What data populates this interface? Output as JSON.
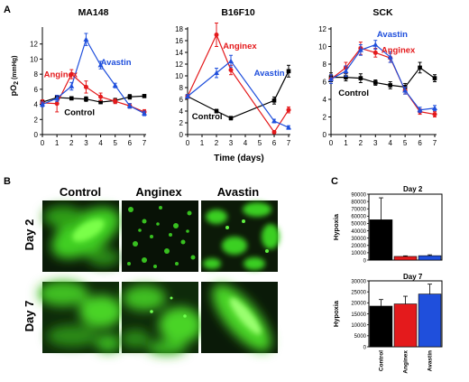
{
  "panel_labels": {
    "a": "A",
    "b": "B",
    "c": "C"
  },
  "colors": {
    "control": "#000000",
    "anginex": "#e41a1c",
    "avastin": "#1f4fdc",
    "micrograph_green": "#39d400"
  },
  "panel_a": {
    "y_label_main": "pO",
    "y_label_sub": "2",
    "y_label_unit": " (mmHg)",
    "x_label": "Time (days)"
  },
  "panel_b": {
    "columns": [
      "Control",
      "Anginex",
      "Avastin"
    ],
    "rows": [
      "Day 2",
      "Day 7"
    ]
  },
  "chart_data": [
    {
      "type": "line",
      "title": "MA148",
      "xlabel": "Time (days)",
      "ylabel": "pO2 (mmHg)",
      "xlim": [
        0,
        7
      ],
      "ylim": [
        0,
        14
      ],
      "x_ticks": [
        "0",
        "1",
        "2",
        "3",
        "4",
        "5",
        "6",
        "7"
      ],
      "y_ticks": [
        "0",
        "2",
        "4",
        "6",
        "8",
        "10",
        "12"
      ],
      "series": [
        {
          "name": "Control",
          "color": "#000000",
          "x": [
            0,
            1,
            2,
            3,
            4,
            5,
            6,
            7
          ],
          "y": [
            4.3,
            4.9,
            4.8,
            4.7,
            4.3,
            4.5,
            5.0,
            5.1
          ],
          "err": [
            0.2,
            0.3,
            0.2,
            0.3,
            0.2,
            0.3,
            0.3,
            0.2
          ]
        },
        {
          "name": "Anginex",
          "color": "#e41a1c",
          "x": [
            0,
            1,
            2,
            3,
            4,
            5,
            6,
            7
          ],
          "y": [
            4.2,
            4.1,
            8.0,
            6.3,
            5.0,
            4.4,
            3.8,
            3.0
          ],
          "err": [
            0.4,
            1.1,
            0.6,
            0.8,
            0.5,
            0.3,
            0.3,
            0.3
          ]
        },
        {
          "name": "Avastin",
          "color": "#1f4fdc",
          "x": [
            0,
            1,
            2,
            3,
            4,
            5,
            6,
            7
          ],
          "y": [
            4.0,
            4.8,
            6.4,
            12.6,
            9.2,
            6.5,
            3.8,
            2.8
          ],
          "err": [
            0.3,
            0.4,
            0.5,
            0.8,
            0.5,
            0.3,
            0.3,
            0.3
          ]
        }
      ],
      "annotations": [
        {
          "text": "Anginex",
          "series": "Anginex"
        },
        {
          "text": "Avastin",
          "series": "Avastin"
        },
        {
          "text": "Control",
          "series": "Control"
        }
      ]
    },
    {
      "type": "line",
      "title": "B16F10",
      "xlabel": "Time (days)",
      "xlim": [
        0,
        7
      ],
      "ylim": [
        0,
        18
      ],
      "x_ticks": [
        "0",
        "1",
        "2",
        "3",
        "4",
        "5",
        "6",
        "7"
      ],
      "y_ticks": [
        "0",
        "2",
        "4",
        "6",
        "8",
        "10",
        "12",
        "14",
        "16",
        "18"
      ],
      "series": [
        {
          "name": "Control",
          "color": "#000000",
          "x": [
            0,
            2,
            3,
            6,
            7
          ],
          "y": [
            6.5,
            4.0,
            2.8,
            5.8,
            10.8
          ],
          "err": [
            0.3,
            0.3,
            0.3,
            0.6,
            1.0
          ]
        },
        {
          "name": "Anginex",
          "color": "#e41a1c",
          "x": [
            0,
            2,
            3,
            6,
            7
          ],
          "y": [
            6.5,
            17.0,
            11.0,
            0.4,
            4.2
          ],
          "err": [
            0.3,
            2.0,
            0.8,
            0.2,
            0.5
          ]
        },
        {
          "name": "Avastin",
          "color": "#1f4fdc",
          "x": [
            0,
            2,
            3,
            6,
            7
          ],
          "y": [
            6.5,
            10.5,
            12.5,
            2.3,
            1.2
          ],
          "err": [
            0.3,
            0.8,
            1.0,
            0.3,
            0.3
          ]
        }
      ],
      "annotations": [
        {
          "text": "Anginex",
          "series": "Anginex"
        },
        {
          "text": "Avastin",
          "series": "Avastin"
        },
        {
          "text": "Control",
          "series": "Control"
        }
      ]
    },
    {
      "type": "line",
      "title": "SCK",
      "xlabel": "Time (days)",
      "xlim": [
        0,
        7
      ],
      "ylim": [
        0,
        12
      ],
      "x_ticks": [
        "0",
        "1",
        "2",
        "3",
        "4",
        "5",
        "6",
        "7"
      ],
      "y_ticks": [
        "0",
        "2",
        "4",
        "6",
        "8",
        "10",
        "12"
      ],
      "series": [
        {
          "name": "Control",
          "color": "#000000",
          "x": [
            0,
            1,
            2,
            3,
            4,
            5,
            6,
            7
          ],
          "y": [
            6.5,
            6.5,
            6.4,
            5.9,
            5.6,
            5.4,
            7.6,
            6.4
          ],
          "err": [
            0.5,
            0.4,
            0.5,
            0.3,
            0.4,
            0.4,
            0.6,
            0.4
          ]
        },
        {
          "name": "Anginex",
          "color": "#e41a1c",
          "x": [
            0,
            1,
            2,
            3,
            4,
            5,
            6,
            7
          ],
          "y": [
            6.3,
            7.6,
            9.8,
            9.3,
            8.7,
            5.0,
            2.6,
            2.3
          ],
          "err": [
            0.5,
            0.6,
            0.7,
            0.5,
            0.5,
            0.4,
            0.3,
            0.3
          ]
        },
        {
          "name": "Avastin",
          "color": "#1f4fdc",
          "x": [
            0,
            1,
            2,
            3,
            4,
            5,
            6,
            7
          ],
          "y": [
            6.3,
            7.2,
            9.6,
            10.2,
            8.8,
            5.0,
            2.8,
            3.0
          ],
          "err": [
            0.5,
            0.6,
            0.6,
            0.5,
            0.6,
            0.4,
            0.3,
            0.3
          ]
        }
      ],
      "annotations": [
        {
          "text": "Avastin",
          "series": "Avastin"
        },
        {
          "text": "Anginex",
          "series": "Anginex"
        },
        {
          "text": "Control",
          "series": "Control"
        }
      ]
    },
    {
      "type": "bar",
      "title": "Day 2",
      "ylabel": "Hypoxia",
      "categories": [
        "Control",
        "Anginex",
        "Avastin"
      ],
      "values": [
        55000,
        5000,
        6000
      ],
      "errors": [
        30000,
        800,
        1200
      ],
      "colors": [
        "#000000",
        "#e41a1c",
        "#1f4fdc"
      ],
      "ylim": [
        0,
        90000
      ],
      "y_ticks": [
        "0",
        "10000",
        "20000",
        "30000",
        "40000",
        "50000",
        "60000",
        "70000",
        "80000",
        "90000"
      ]
    },
    {
      "type": "bar",
      "title": "Day 7",
      "ylabel": "Hypoxia",
      "categories": [
        "Control",
        "Anginex",
        "Avastin"
      ],
      "values": [
        18500,
        19500,
        24000
      ],
      "errors": [
        3000,
        3500,
        4500
      ],
      "colors": [
        "#000000",
        "#e41a1c",
        "#1f4fdc"
      ],
      "ylim": [
        0,
        30000
      ],
      "y_ticks": [
        "0",
        "5000",
        "10000",
        "15000",
        "20000",
        "25000",
        "30000"
      ]
    }
  ]
}
